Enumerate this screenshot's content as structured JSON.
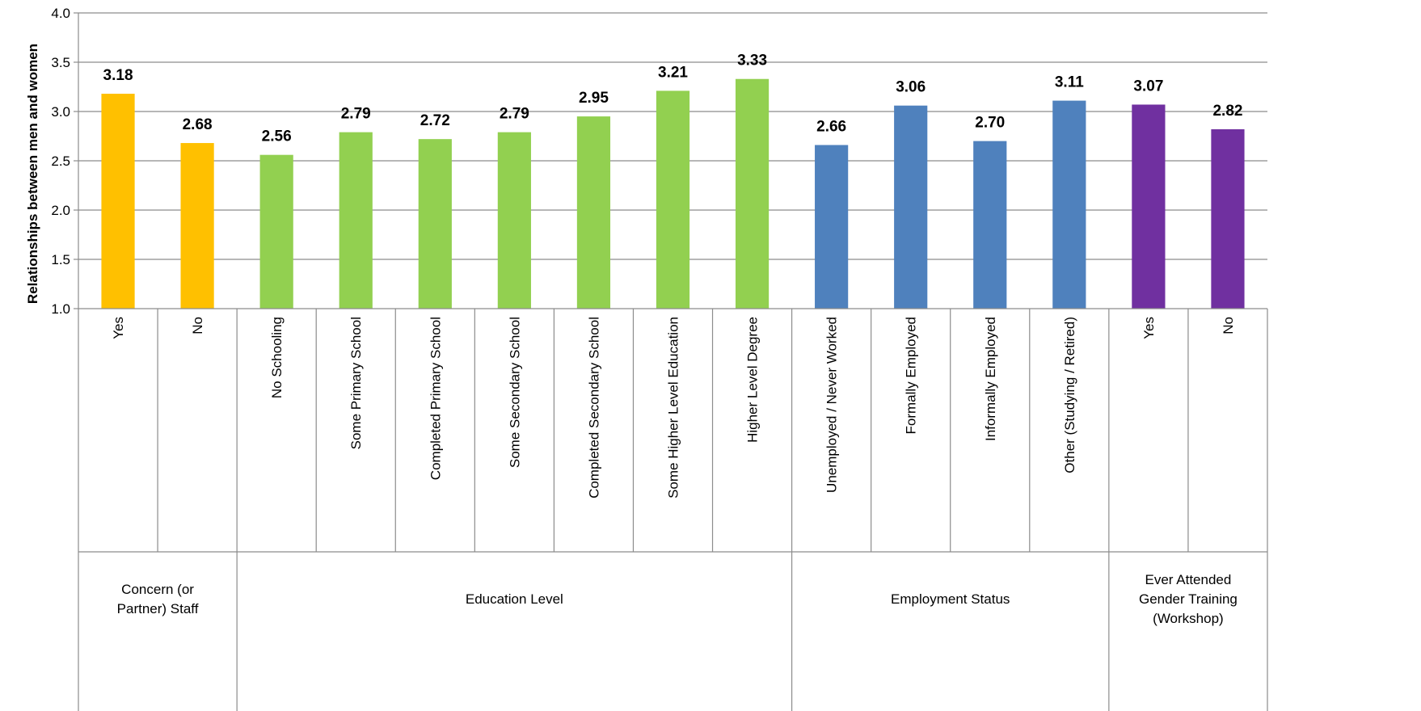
{
  "chart_data": {
    "type": "bar",
    "ylabel": "Relationships between men and women",
    "ylim": [
      1.0,
      4.0
    ],
    "yticks": [
      "1.0",
      "1.5",
      "2.0",
      "2.5",
      "3.0",
      "3.5",
      "4.0"
    ],
    "grid": true,
    "legend": "none",
    "groups": [
      {
        "name": "Concern (or Partner) Staff",
        "name_lines": [
          "Concern (or",
          "Partner) Staff"
        ],
        "color": "#FFC000",
        "categories": [
          "Yes",
          "No"
        ],
        "values": [
          3.18,
          2.68
        ],
        "labels": [
          "3.18",
          "2.68"
        ]
      },
      {
        "name": "Education Level",
        "name_lines": [
          "Education Level"
        ],
        "color": "#92D050",
        "categories": [
          "No Schooling",
          "Some Primary School",
          "Completed Primary School",
          "Some Secondary School",
          "Completed Secondary School",
          "Some Higher Level Education",
          "Higher Level Degree"
        ],
        "values": [
          2.56,
          2.79,
          2.72,
          2.79,
          2.95,
          3.21,
          3.33
        ],
        "labels": [
          "2.56",
          "2.79",
          "2.72",
          "2.79",
          "2.95",
          "3.21",
          "3.33"
        ]
      },
      {
        "name": "Employment Status",
        "name_lines": [
          "Employment Status"
        ],
        "color": "#4F81BD",
        "categories": [
          "Unemployed / Never Worked",
          "Formally Employed",
          "Informally Employed",
          "Other (Studying / Retired)"
        ],
        "values": [
          2.66,
          3.06,
          2.7,
          3.11
        ],
        "labels": [
          "2.66",
          "3.06",
          "2.70",
          "3.11"
        ]
      },
      {
        "name": "Ever Attended Gender Training (Workshop)",
        "name_lines": [
          "Ever Attended",
          "Gender Training",
          "(Workshop)"
        ],
        "color": "#7030A0",
        "categories": [
          "Yes",
          "No"
        ],
        "values": [
          3.07,
          2.82
        ],
        "labels": [
          "3.07",
          "2.82"
        ]
      }
    ]
  }
}
